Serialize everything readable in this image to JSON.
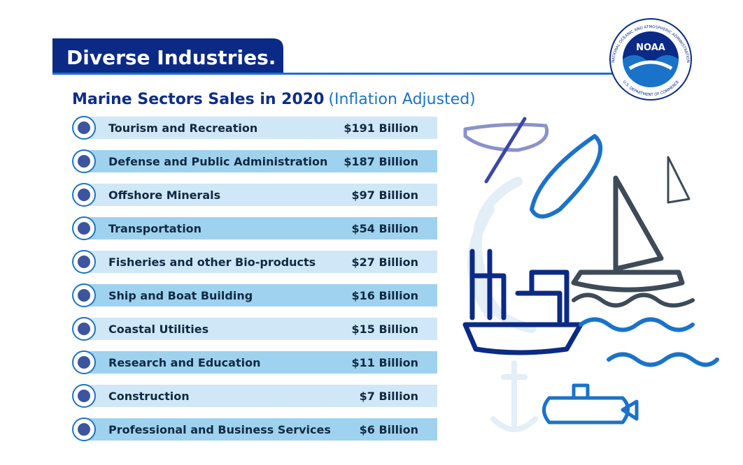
{
  "header": {
    "title": "Diverse Industries.",
    "subtitle": "Marine Sectors Sales in 2020",
    "subtitle_note": "(Inflation Adjusted)"
  },
  "logo": {
    "name": "NOAA",
    "ring_top": "NATIONAL OCEANIC AND ATMOSPHERIC ADMINISTRATION",
    "ring_bottom": "U.S. DEPARTMENT OF COMMERCE"
  },
  "table": {
    "rows": [
      [
        "Tourism and Recreation",
        "$191 Billion"
      ],
      [
        "Defense and Public Administration",
        "$187 Billion"
      ],
      [
        "Offshore Minerals",
        "$97 Billion"
      ],
      [
        "Transportation",
        "$54 Billion"
      ],
      [
        "Fisheries and other Bio-products",
        "$27 Billion"
      ],
      [
        "Ship and Boat Building",
        "$16 Billion"
      ],
      [
        "Coastal Utilities",
        "$15 Billion"
      ],
      [
        "Research and Education",
        "$11 Billion"
      ],
      [
        "Construction",
        "$7 Billion"
      ],
      [
        "Professional and Business Services",
        "$6 Billion"
      ]
    ]
  }
}
